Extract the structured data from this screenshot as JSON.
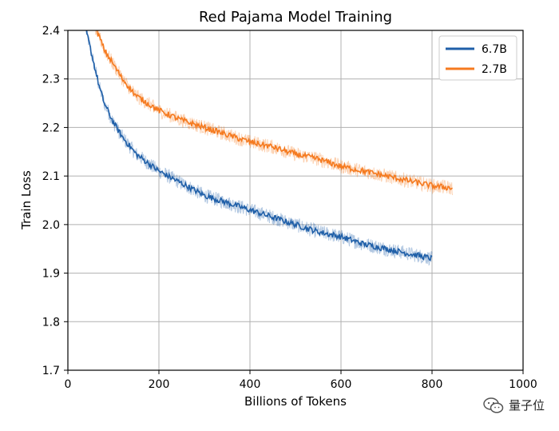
{
  "chart_data": {
    "type": "line",
    "title": "Red Pajama Model Training",
    "xlabel": "Billions of Tokens",
    "ylabel": "Train Loss",
    "xlim": [
      0,
      1000
    ],
    "ylim": [
      1.7,
      2.4
    ],
    "xticks": [
      0,
      200,
      400,
      600,
      800,
      1000
    ],
    "yticks": [
      1.7,
      1.8,
      1.9,
      2.0,
      2.1,
      2.2,
      2.3,
      2.4
    ],
    "xtick_labels": [
      "0",
      "200",
      "400",
      "600",
      "800",
      "1000"
    ],
    "ytick_labels": [
      "1.7",
      "1.8",
      "1.9",
      "2.0",
      "2.1",
      "2.2",
      "2.3",
      "2.4"
    ],
    "grid": true,
    "legend_position": "top-right",
    "series": [
      {
        "name": "6.7B",
        "color": "#1f5fa8",
        "x": [
          40,
          50,
          60,
          70,
          80,
          100,
          120,
          150,
          200,
          250,
          300,
          350,
          400,
          450,
          500,
          550,
          600,
          650,
          700,
          750,
          800
        ],
        "y": [
          2.4,
          2.36,
          2.32,
          2.28,
          2.25,
          2.21,
          2.18,
          2.145,
          2.11,
          2.085,
          2.06,
          2.045,
          2.03,
          2.015,
          2.0,
          1.985,
          1.975,
          1.96,
          1.95,
          1.94,
          1.93
        ]
      },
      {
        "name": "2.7B",
        "color": "#f57a1f",
        "x": [
          60,
          70,
          80,
          100,
          120,
          150,
          200,
          250,
          300,
          350,
          400,
          450,
          500,
          550,
          600,
          650,
          700,
          750,
          800,
          845
        ],
        "y": [
          2.405,
          2.385,
          2.36,
          2.33,
          2.3,
          2.265,
          2.235,
          2.215,
          2.2,
          2.185,
          2.17,
          2.16,
          2.145,
          2.135,
          2.12,
          2.11,
          2.1,
          2.09,
          2.08,
          2.075
        ]
      }
    ]
  },
  "watermark": {
    "text": "量子位",
    "icon": "wechat-icon"
  }
}
